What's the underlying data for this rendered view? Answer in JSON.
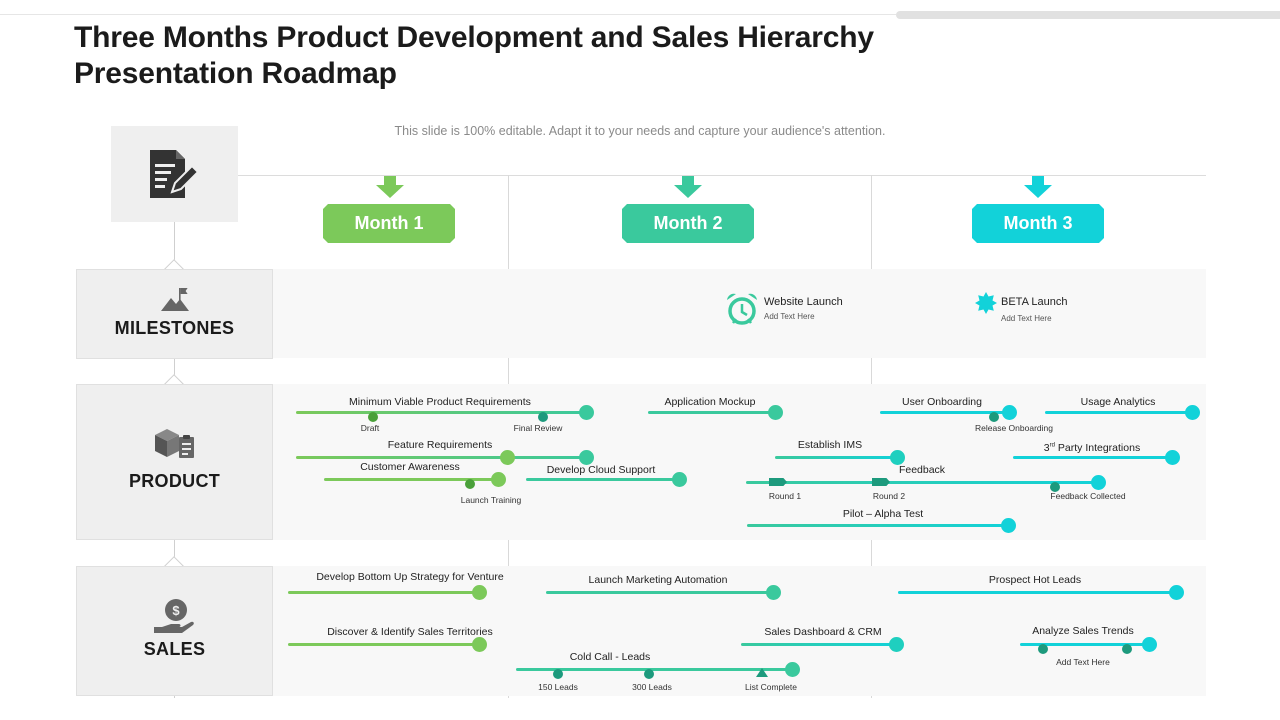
{
  "title": "Three Months Product Development and Sales Hierarchy Presentation Roadmap",
  "subtitle": "This slide is 100% editable. Adapt it to your needs and capture your audience's attention.",
  "colors": {
    "month1": "#7cc95a",
    "month2": "#3ac99d",
    "month3": "#12d2d9",
    "dot_dark": "#1d9a7d",
    "label_bg": "#efefef"
  },
  "months": [
    "Month 1",
    "Month 2",
    "Month 3"
  ],
  "rows": {
    "milestones": {
      "label": "MILESTONES",
      "icon": "mountain-flag-icon"
    },
    "product": {
      "label": "PRODUCT",
      "icon": "boxes-clipboard-icon"
    },
    "sales": {
      "label": "SALES",
      "icon": "hand-dollar-icon"
    }
  },
  "milestones": [
    {
      "title": "Website Launch",
      "sub": "Add Text Here",
      "icon": "alarm-clock-icon"
    },
    {
      "title": "BETA Launch",
      "sub": "Add Text Here",
      "icon": "star-badge-icon"
    }
  ],
  "product": {
    "mvp": "Minimum  Viable Product Requirements",
    "draft": "Draft",
    "final_review": "Final Review",
    "feature_req": "Feature Requirements",
    "customer_awareness": "Customer Awareness",
    "launch_training": "Launch Training",
    "app_mockup": "Application Mockup",
    "cloud_support": "Develop Cloud Support",
    "establish_ims": "Establish IMS",
    "feedback": "Feedback",
    "round1": "Round 1",
    "round2": "Round 2",
    "feedback_collected": "Feedback Collected",
    "pilot": "Pilot – Alpha Test",
    "user_onboarding": "User Onboarding",
    "release_onboarding": "Release Onboarding",
    "usage_analytics": "Usage Analytics",
    "party_integrations_pre": "3",
    "party_integrations_sup": "rd",
    "party_integrations_post": " Party Integrations"
  },
  "sales": {
    "bottom_up": "Develop Bottom Up Strategy for Venture",
    "territories": "Discover & Identify Sales Territories",
    "marketing_auto": "Launch Marketing Automation",
    "cold_call": "Cold Call - Leads",
    "leads150": "150 Leads",
    "leads300": "300 Leads",
    "list_complete": "List Complete",
    "dashboard": "Sales Dashboard & CRM",
    "hot_leads": "Prospect Hot Leads",
    "trends": "Analyze Sales Trends",
    "trends_sub": "Add Text Here"
  }
}
